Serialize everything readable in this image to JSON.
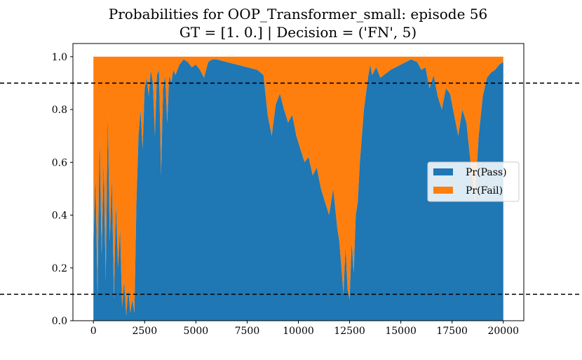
{
  "chart_data": {
    "type": "area",
    "title": "Probabilities for OOP_Transformer_small: episode 56",
    "subtitle": "GT = [1. 0.] | Decision = ('FN', 5)",
    "xlabel": "",
    "ylabel": "",
    "xlim": [
      -1000,
      21000
    ],
    "ylim": [
      0.0,
      1.05
    ],
    "x_ticks": [
      0,
      2500,
      5000,
      7500,
      10000,
      12500,
      15000,
      17500,
      20000
    ],
    "x_tick_labels": [
      "0",
      "2500",
      "5000",
      "7500",
      "10000",
      "12500",
      "15000",
      "17500",
      "20000"
    ],
    "y_ticks": [
      0.0,
      0.2,
      0.4,
      0.6,
      0.8,
      1.0
    ],
    "y_tick_labels": [
      "0.0",
      "0.2",
      "0.4",
      "0.6",
      "0.8",
      "1.0"
    ],
    "thresholds": [
      0.9,
      0.1
    ],
    "legend_position": "right",
    "grid": false,
    "x": [
      0,
      100,
      200,
      300,
      400,
      500,
      600,
      700,
      800,
      900,
      1000,
      1100,
      1200,
      1300,
      1400,
      1500,
      1600,
      1700,
      1800,
      1900,
      2000,
      2100,
      2200,
      2300,
      2400,
      2500,
      2600,
      2700,
      2800,
      2900,
      3000,
      3100,
      3200,
      3300,
      3400,
      3500,
      3600,
      3700,
      3800,
      3900,
      4000,
      4200,
      4400,
      4600,
      4800,
      5000,
      5200,
      5400,
      5600,
      5800,
      6000,
      6500,
      7000,
      7500,
      8000,
      8300,
      8500,
      8700,
      8900,
      9100,
      9300,
      9500,
      9700,
      9900,
      10100,
      10300,
      10500,
      10700,
      10900,
      11100,
      11300,
      11500,
      11700,
      11900,
      12000,
      12100,
      12200,
      12300,
      12400,
      12500,
      12600,
      12700,
      12800,
      12900,
      13000,
      13200,
      13400,
      13500,
      13600,
      13800,
      14000,
      14500,
      15000,
      15500,
      15800,
      16000,
      16200,
      16400,
      16600,
      16800,
      17000,
      17200,
      17400,
      17600,
      17800,
      18000,
      18200,
      18400,
      18600,
      18800,
      19000,
      19200,
      19400,
      19600,
      19800,
      20000
    ],
    "series": [
      {
        "name": "Pr(Pass)",
        "color": "#1f77b4",
        "values": [
          0.3,
          0.55,
          0.1,
          0.7,
          0.25,
          0.6,
          0.15,
          0.78,
          0.3,
          0.55,
          0.08,
          0.45,
          0.2,
          0.35,
          0.05,
          0.15,
          0.02,
          0.12,
          0.03,
          0.08,
          0.03,
          0.45,
          0.7,
          0.8,
          0.65,
          0.88,
          0.92,
          0.85,
          0.95,
          0.9,
          0.7,
          0.93,
          0.95,
          0.55,
          0.88,
          0.93,
          0.75,
          0.93,
          0.9,
          0.95,
          0.93,
          0.97,
          0.99,
          0.98,
          0.96,
          0.97,
          0.95,
          0.92,
          0.98,
          0.99,
          0.99,
          0.98,
          0.97,
          0.96,
          0.95,
          0.93,
          0.78,
          0.7,
          0.82,
          0.86,
          0.8,
          0.75,
          0.78,
          0.7,
          0.65,
          0.6,
          0.62,
          0.55,
          0.58,
          0.5,
          0.45,
          0.4,
          0.5,
          0.35,
          0.3,
          0.2,
          0.1,
          0.28,
          0.12,
          0.08,
          0.3,
          0.18,
          0.4,
          0.45,
          0.6,
          0.8,
          0.92,
          0.97,
          0.93,
          0.96,
          0.92,
          0.95,
          0.97,
          0.99,
          0.98,
          0.95,
          0.96,
          0.88,
          0.93,
          0.85,
          0.8,
          0.88,
          0.86,
          0.78,
          0.7,
          0.8,
          0.75,
          0.6,
          0.45,
          0.7,
          0.85,
          0.92,
          0.94,
          0.95,
          0.97,
          0.98
        ]
      },
      {
        "name": "Pr(Fail)",
        "color": "#ff7f0e",
        "values": [
          0.7,
          0.45,
          0.9,
          0.3,
          0.75,
          0.4,
          0.85,
          0.22,
          0.7,
          0.45,
          0.92,
          0.55,
          0.8,
          0.65,
          0.95,
          0.85,
          0.98,
          0.88,
          0.97,
          0.92,
          0.97,
          0.55,
          0.3,
          0.2,
          0.35,
          0.12,
          0.08,
          0.15,
          0.05,
          0.1,
          0.3,
          0.07,
          0.05,
          0.45,
          0.12,
          0.07,
          0.25,
          0.07,
          0.1,
          0.05,
          0.07,
          0.03,
          0.01,
          0.02,
          0.04,
          0.03,
          0.05,
          0.08,
          0.02,
          0.01,
          0.01,
          0.02,
          0.03,
          0.04,
          0.05,
          0.07,
          0.22,
          0.3,
          0.18,
          0.14,
          0.2,
          0.25,
          0.22,
          0.3,
          0.35,
          0.4,
          0.38,
          0.45,
          0.42,
          0.5,
          0.55,
          0.6,
          0.5,
          0.65,
          0.7,
          0.8,
          0.9,
          0.72,
          0.88,
          0.92,
          0.7,
          0.82,
          0.6,
          0.55,
          0.4,
          0.2,
          0.08,
          0.03,
          0.07,
          0.04,
          0.08,
          0.05,
          0.03,
          0.01,
          0.02,
          0.05,
          0.04,
          0.12,
          0.07,
          0.15,
          0.2,
          0.12,
          0.14,
          0.22,
          0.3,
          0.2,
          0.25,
          0.4,
          0.55,
          0.3,
          0.15,
          0.08,
          0.06,
          0.05,
          0.03,
          0.02
        ]
      }
    ]
  }
}
